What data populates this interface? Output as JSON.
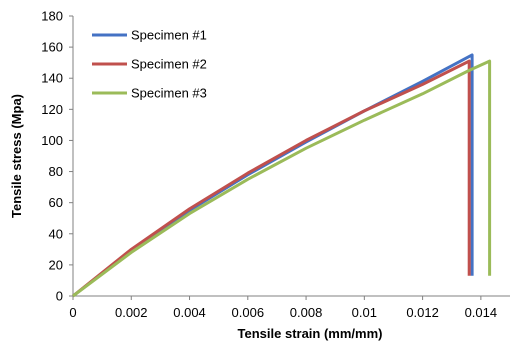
{
  "chart_data": {
    "type": "line",
    "title": "",
    "xlabel": "Tensile strain (mm/mm)",
    "ylabel": "Tensile stress (Mpa)",
    "xlim": [
      0,
      0.015
    ],
    "ylim": [
      0,
      180
    ],
    "x_ticks": [
      "0",
      "0.002",
      "0.004",
      "0.006",
      "0.008",
      "0.01",
      "0.012",
      "0.014"
    ],
    "y_ticks": [
      "0",
      "20",
      "40",
      "60",
      "80",
      "100",
      "120",
      "140",
      "160",
      "180"
    ],
    "grid": false,
    "legend_position": "top-left",
    "series": [
      {
        "name": "Specimen #1",
        "color": "#4472C4",
        "points": [
          [
            0,
            0
          ],
          [
            0.002,
            29
          ],
          [
            0.004,
            55
          ],
          [
            0.006,
            78
          ],
          [
            0.008,
            99
          ],
          [
            0.01,
            119
          ],
          [
            0.012,
            138
          ],
          [
            0.0137,
            155
          ],
          [
            0.0137,
            13
          ]
        ]
      },
      {
        "name": "Specimen #2",
        "color": "#C0504D",
        "points": [
          [
            0,
            0
          ],
          [
            0.002,
            30
          ],
          [
            0.004,
            56
          ],
          [
            0.006,
            79
          ],
          [
            0.008,
            100
          ],
          [
            0.01,
            119
          ],
          [
            0.012,
            136
          ],
          [
            0.0136,
            151
          ],
          [
            0.0136,
            13
          ]
        ]
      },
      {
        "name": "Specimen #3",
        "color": "#9BBB59",
        "points": [
          [
            0,
            0
          ],
          [
            0.002,
            28
          ],
          [
            0.004,
            53
          ],
          [
            0.006,
            75
          ],
          [
            0.008,
            95
          ],
          [
            0.01,
            113
          ],
          [
            0.012,
            130
          ],
          [
            0.0136,
            145
          ],
          [
            0.0143,
            151
          ],
          [
            0.0143,
            13
          ]
        ]
      }
    ]
  }
}
